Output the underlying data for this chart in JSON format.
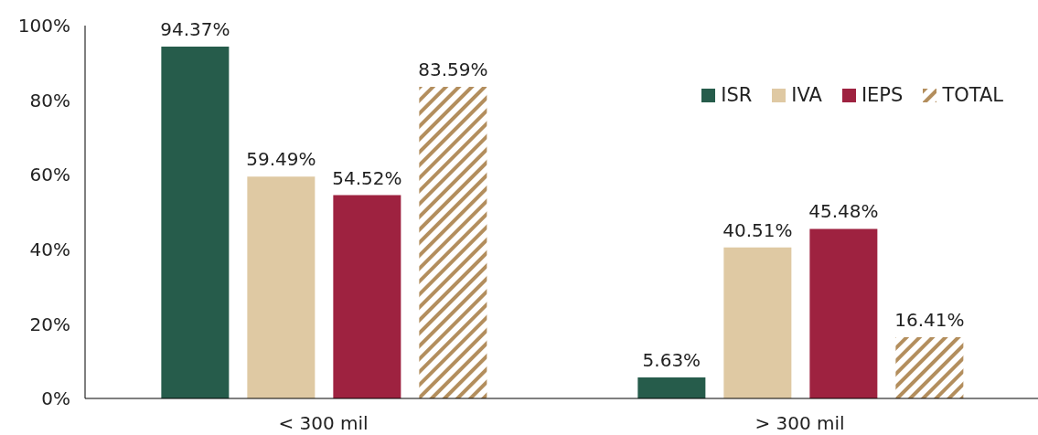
{
  "chart_data": {
    "type": "bar",
    "categories": [
      "< 300 mil",
      "> 300 mil"
    ],
    "series": [
      {
        "name": "ISR",
        "color": "#265c4b",
        "values": [
          94.37,
          5.63
        ],
        "value_labels": [
          "94.37%",
          "5.63%"
        ]
      },
      {
        "name": "IVA",
        "color": "#dfc9a3",
        "values": [
          59.49,
          40.51
        ],
        "value_labels": [
          "59.49%",
          "40.51%"
        ]
      },
      {
        "name": "IEPS",
        "color": "#9e2240",
        "values": [
          54.52,
          45.48
        ],
        "value_labels": [
          "54.52%",
          "45.48%"
        ]
      },
      {
        "name": "TOTAL",
        "color": "#b38e5d",
        "values": [
          83.59,
          16.41
        ],
        "value_labels": [
          "83.59%",
          "16.41%"
        ]
      }
    ],
    "ylim": [
      0,
      100
    ],
    "yticks": [
      {
        "value": 0,
        "label": "0%"
      },
      {
        "value": 20,
        "label": "20%"
      },
      {
        "value": 40,
        "label": "40%"
      },
      {
        "value": 60,
        "label": "60%"
      },
      {
        "value": 80,
        "label": "80%"
      },
      {
        "value": 100,
        "label": "100%"
      }
    ],
    "grid": false,
    "legend": "top right"
  }
}
